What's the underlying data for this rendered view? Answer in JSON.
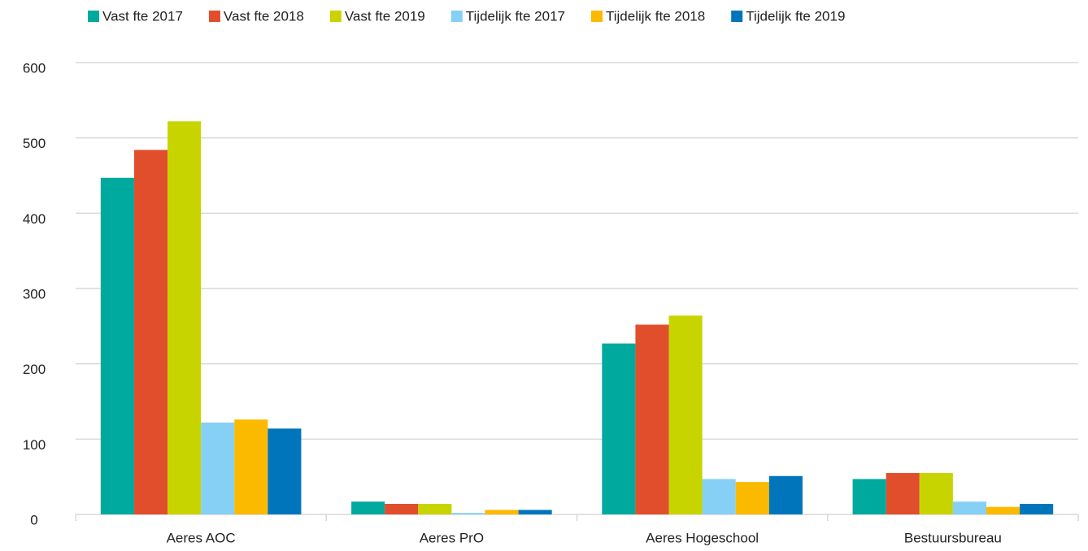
{
  "chart_data": {
    "type": "bar",
    "categories": [
      "Aeres AOC",
      "Aeres PrO",
      "Aeres Hogeschool",
      "Bestuursbureau"
    ],
    "series": [
      {
        "name": "Vast fte 2017",
        "color": "#00a99d",
        "values": [
          447,
          17,
          227,
          47
        ]
      },
      {
        "name": "Vast fte 2018",
        "color": "#e04e2c",
        "values": [
          484,
          14,
          252,
          55
        ]
      },
      {
        "name": "Vast fte 2019",
        "color": "#c8d400",
        "values": [
          522,
          14,
          264,
          55
        ]
      },
      {
        "name": "Tijdelijk fte 2017",
        "color": "#86d0f5",
        "values": [
          122,
          2,
          47,
          17
        ]
      },
      {
        "name": "Tijdelijk fte 2018",
        "color": "#fbb900",
        "values": [
          126,
          6,
          43,
          10
        ]
      },
      {
        "name": "Tijdelijk fte 2019",
        "color": "#0075bc",
        "values": [
          114,
          6,
          51,
          14
        ]
      }
    ],
    "ylim": [
      0,
      600
    ],
    "yticks": [
      0,
      100,
      200,
      300,
      400,
      500,
      600
    ],
    "grid": true,
    "legend": "top"
  }
}
